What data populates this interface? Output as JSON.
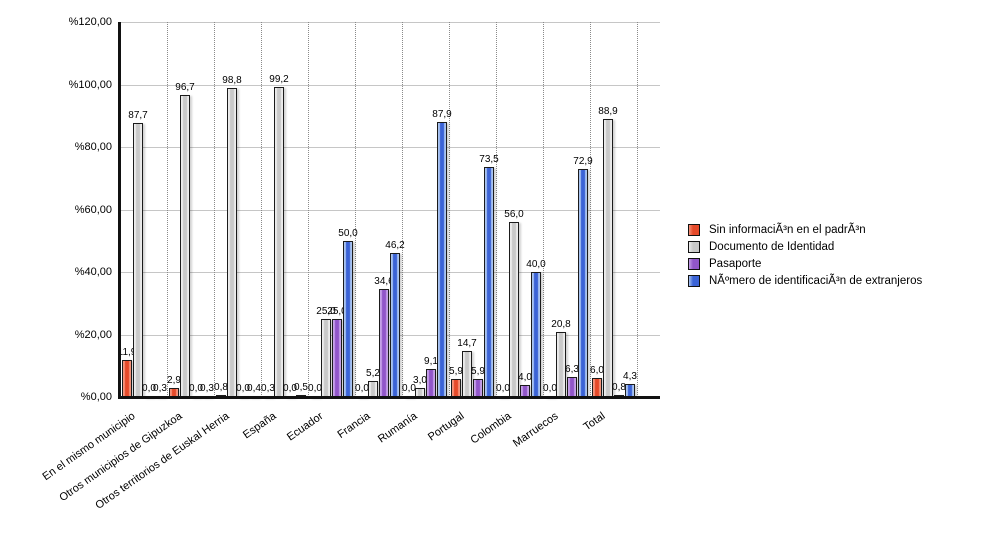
{
  "chart_data": {
    "type": "bar",
    "title": "",
    "xlabel": "",
    "ylabel": "",
    "ylim": [
      0,
      120
    ],
    "grid": "horizontal-solid-and-vertical-dotted",
    "legend_position": "right",
    "decimal_separator": ",",
    "y_ticks": [
      {
        "value": 0,
        "label": "%0,00"
      },
      {
        "value": 20,
        "label": "%20,00"
      },
      {
        "value": 40,
        "label": "%40,00"
      },
      {
        "value": 60,
        "label": "%60,00"
      },
      {
        "value": 80,
        "label": "%80,00"
      },
      {
        "value": 100,
        "label": "%100,00"
      },
      {
        "value": 120,
        "label": "%120,00"
      }
    ],
    "categories": [
      "En el mismo municipio",
      "Otros municipios de Gipuzkoa",
      "Otros territorios de Euskal Herria",
      "España",
      "Ecuador",
      "Francia",
      "Rumanía",
      "Portugal",
      "Colombia",
      "Marruecos",
      "Total"
    ],
    "series": [
      {
        "name": "Sin informaciÃ³n en el padrÃ³n",
        "color": "#e64a2a",
        "highlight": "#f5937a",
        "values": [
          11.9,
          2.9,
          0.8,
          0.3,
          0.0,
          0.0,
          0.0,
          5.9,
          0.0,
          0.0,
          6.0
        ]
      },
      {
        "name": "Documento de Identidad",
        "color": "#c9c9c9",
        "highlight": "#ececec",
        "values": [
          87.7,
          96.7,
          98.8,
          99.2,
          25.0,
          5.2,
          3.0,
          14.7,
          56.0,
          20.8,
          88.9
        ]
      },
      {
        "name": "Pasaporte",
        "color": "#9156c9",
        "highlight": "#c5a0e8",
        "values": [
          0.0,
          0.0,
          0.0,
          0.0,
          25.0,
          34.6,
          9.1,
          5.9,
          4.0,
          6.3,
          0.8
        ]
      },
      {
        "name": "NÃºmero de identificaciÃ³n de extranjeros",
        "color": "#3b63d6",
        "highlight": "#a9c4f0",
        "values": [
          0.3,
          0.3,
          0.4,
          0.5,
          50.0,
          46.2,
          87.9,
          73.5,
          40.0,
          72.9,
          4.3
        ]
      }
    ]
  }
}
